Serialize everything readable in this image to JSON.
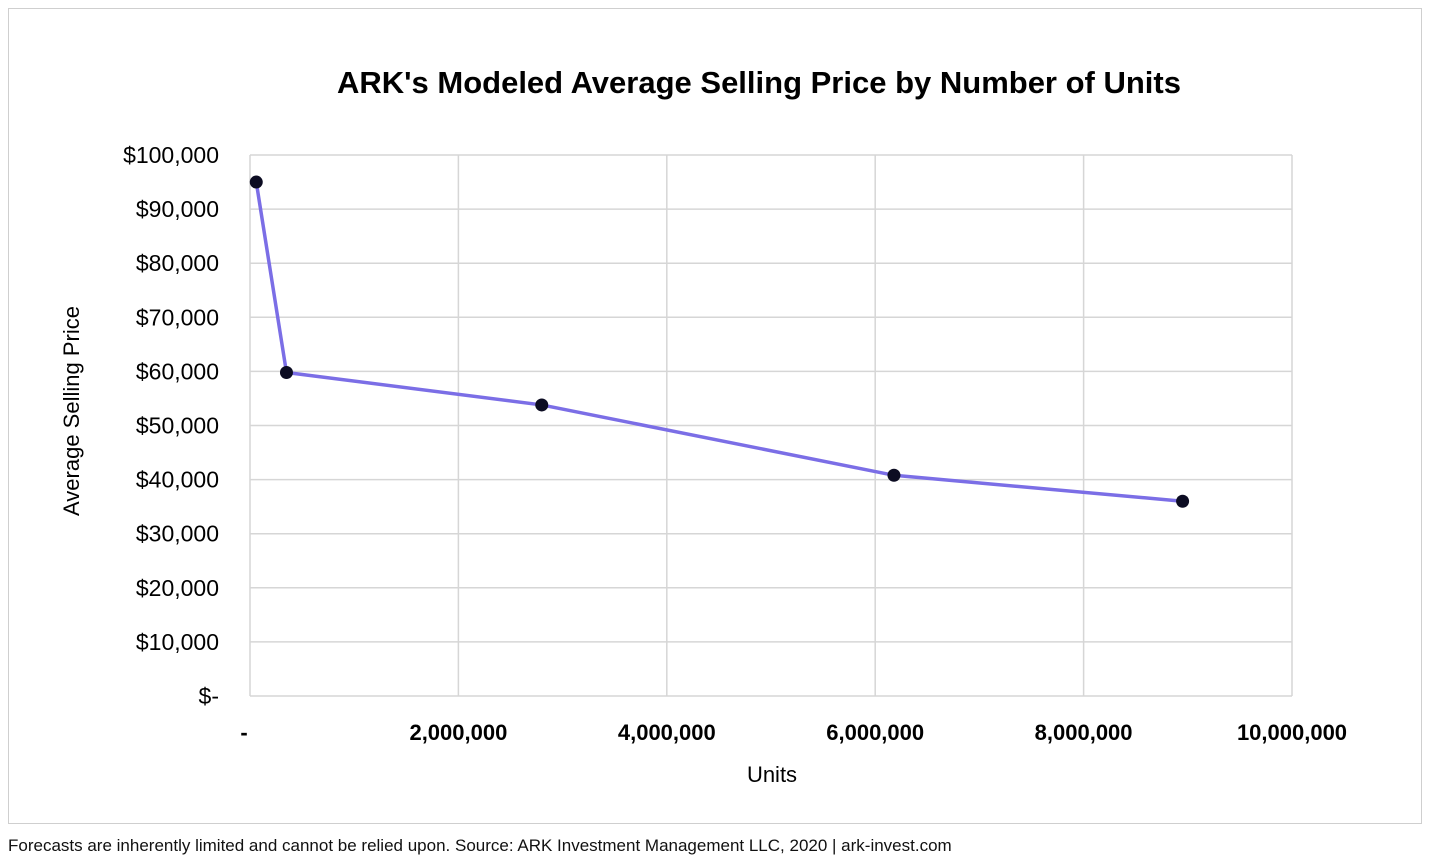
{
  "colors": {
    "line": "#7b6ee6",
    "marker": "#0c0c22",
    "grid": "#d6d6d6"
  },
  "footer": {
    "text": "Forecasts are inherently limited and cannot be relied upon. Source: ARK Investment Management LLC, 2020  |  ark-invest.com"
  },
  "chart_data": {
    "type": "line",
    "title": "ARK's Modeled Average Selling Price by Number of Units",
    "xlabel": "Units",
    "ylabel": "Average Selling Price",
    "xlim": [
      0,
      10000000
    ],
    "ylim": [
      0,
      100000
    ],
    "grid": true,
    "x_ticks": [
      {
        "value": 0,
        "label": "-"
      },
      {
        "value": 2000000,
        "label": "2,000,000"
      },
      {
        "value": 4000000,
        "label": "4,000,000"
      },
      {
        "value": 6000000,
        "label": "6,000,000"
      },
      {
        "value": 8000000,
        "label": "8,000,000"
      },
      {
        "value": 10000000,
        "label": "10,000,000"
      }
    ],
    "y_ticks": [
      {
        "value": 0,
        "label": "$-"
      },
      {
        "value": 10000,
        "label": "$10,000"
      },
      {
        "value": 20000,
        "label": "$20,000"
      },
      {
        "value": 30000,
        "label": "$30,000"
      },
      {
        "value": 40000,
        "label": "$40,000"
      },
      {
        "value": 50000,
        "label": "$50,000"
      },
      {
        "value": 60000,
        "label": "$60,000"
      },
      {
        "value": 70000,
        "label": "$70,000"
      },
      {
        "value": 80000,
        "label": "$80,000"
      },
      {
        "value": 90000,
        "label": "$90,000"
      },
      {
        "value": 100000,
        "label": "$100,000"
      }
    ],
    "series": [
      {
        "points": [
          {
            "x": 60000,
            "y": 95000
          },
          {
            "x": 350000,
            "y": 59800
          },
          {
            "x": 2800000,
            "y": 53800
          },
          {
            "x": 6180000,
            "y": 40800
          },
          {
            "x": 8950000,
            "y": 36000
          }
        ]
      }
    ]
  }
}
